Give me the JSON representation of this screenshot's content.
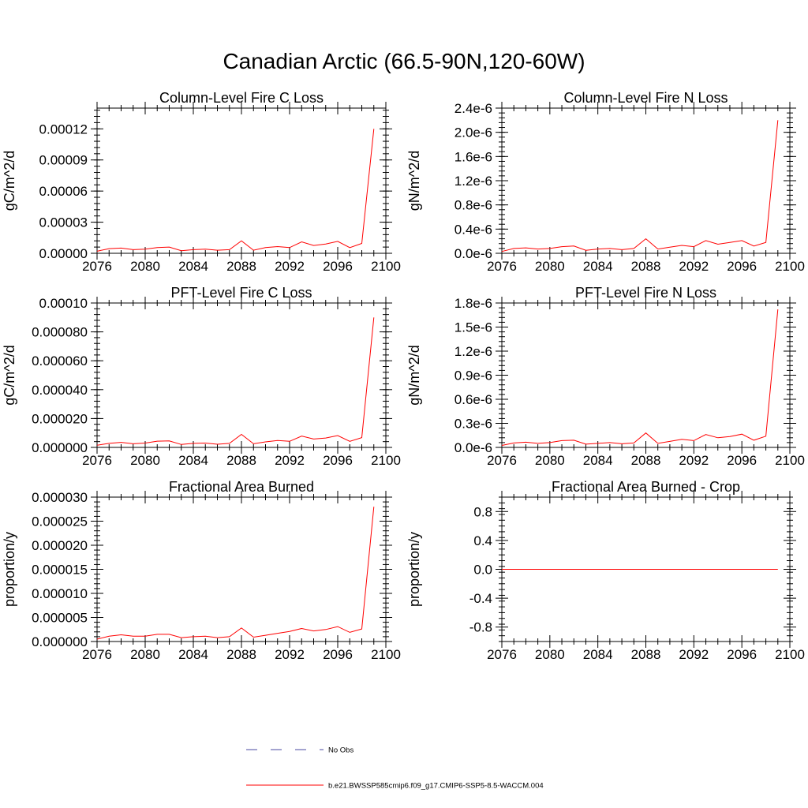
{
  "title": "Canadian Arctic (66.5-90N,120-60W)",
  "colors": {
    "model_line": "#ff0000",
    "obs_line": "#4a4aa0",
    "axis": "#000000"
  },
  "chart_data": [
    {
      "type": "line",
      "title": "Column-Level Fire C Loss",
      "ylabel": "gC/m^2/d",
      "xlim": [
        2076,
        2100
      ],
      "ylim": [
        0,
        0.00014
      ],
      "xticks": [
        "2076",
        "2080",
        "2084",
        "2088",
        "2092",
        "2096",
        "2100"
      ],
      "yticks": [
        {
          "v": 0,
          "label": "0.00000"
        },
        {
          "v": 3e-05,
          "label": "0.00003"
        },
        {
          "v": 6e-05,
          "label": "0.00006"
        },
        {
          "v": 9e-05,
          "label": "0.00009"
        },
        {
          "v": 0.00012,
          "label": "0.00012"
        }
      ],
      "x": [
        2076,
        2077,
        2078,
        2079,
        2080,
        2081,
        2082,
        2083,
        2084,
        2085,
        2086,
        2087,
        2088,
        2089,
        2090,
        2091,
        2092,
        2093,
        2094,
        2095,
        2096,
        2097,
        2098,
        2099
      ],
      "series": [
        {
          "values": [
            2e-06,
            4.5e-06,
            5e-06,
            3.5e-06,
            4e-06,
            5.5e-06,
            6e-06,
            2.5e-06,
            3.5e-06,
            4e-06,
            3e-06,
            3.5e-06,
            1.2e-05,
            3e-06,
            5.5e-06,
            6.5e-06,
            5.5e-06,
            1.1e-05,
            7.5e-06,
            9e-06,
            1.15e-05,
            5.5e-06,
            9.5e-06,
            0.00012
          ]
        }
      ]
    },
    {
      "type": "line",
      "title": "Column-Level Fire N Loss",
      "ylabel": "gN/m^2/d",
      "xlim": [
        2076,
        2100
      ],
      "ylim": [
        0,
        2.4e-06
      ],
      "xticks": [
        "2076",
        "2080",
        "2084",
        "2088",
        "2092",
        "2096",
        "2100"
      ],
      "yticks": [
        {
          "v": 0,
          "label": "0.0e-6"
        },
        {
          "v": 4e-07,
          "label": "0.4e-6"
        },
        {
          "v": 8e-07,
          "label": "0.8e-6"
        },
        {
          "v": 1.2e-06,
          "label": "1.2e-6"
        },
        {
          "v": 1.6e-06,
          "label": "1.6e-6"
        },
        {
          "v": 2e-06,
          "label": "2.0e-6"
        },
        {
          "v": 2.4e-06,
          "label": "2.4e-6"
        }
      ],
      "x": [
        2076,
        2077,
        2078,
        2079,
        2080,
        2081,
        2082,
        2083,
        2084,
        2085,
        2086,
        2087,
        2088,
        2089,
        2090,
        2091,
        2092,
        2093,
        2094,
        2095,
        2096,
        2097,
        2098,
        2099
      ],
      "series": [
        {
          "values": [
            3e-08,
            8e-08,
            9e-08,
            7e-08,
            8e-08,
            1.1e-07,
            1.2e-07,
            5e-08,
            7e-08,
            8e-08,
            6e-08,
            8e-08,
            2.4e-07,
            7e-08,
            1e-07,
            1.3e-07,
            1.1e-07,
            2.1e-07,
            1.5e-07,
            1.8e-07,
            2.1e-07,
            1.2e-07,
            1.8e-07,
            2.2e-06
          ]
        }
      ]
    },
    {
      "type": "line",
      "title": "PFT-Level Fire C Loss",
      "ylabel": "gC/m^2/d",
      "xlim": [
        2076,
        2100
      ],
      "ylim": [
        0,
        0.0001
      ],
      "xticks": [
        "2076",
        "2080",
        "2084",
        "2088",
        "2092",
        "2096",
        "2100"
      ],
      "yticks": [
        {
          "v": 0,
          "label": "0.000000"
        },
        {
          "v": 2e-05,
          "label": "0.000020"
        },
        {
          "v": 4e-05,
          "label": "0.000040"
        },
        {
          "v": 6e-05,
          "label": "0.000060"
        },
        {
          "v": 8e-05,
          "label": "0.000080"
        },
        {
          "v": 0.0001,
          "label": "0.00010"
        }
      ],
      "x": [
        2076,
        2077,
        2078,
        2079,
        2080,
        2081,
        2082,
        2083,
        2084,
        2085,
        2086,
        2087,
        2088,
        2089,
        2090,
        2091,
        2092,
        2093,
        2094,
        2095,
        2096,
        2097,
        2098,
        2099
      ],
      "series": [
        {
          "values": [
            1.5e-06,
            2.8e-06,
            3.5e-06,
            2.5e-06,
            3e-06,
            4.3e-06,
            4.5e-06,
            2e-06,
            2.8e-06,
            3e-06,
            2.2e-06,
            2.8e-06,
            9e-06,
            2.5e-06,
            3.8e-06,
            4.8e-06,
            4.2e-06,
            7.8e-06,
            5.8e-06,
            6.5e-06,
            8.2e-06,
            4.2e-06,
            6.8e-06,
            9e-05
          ]
        }
      ]
    },
    {
      "type": "line",
      "title": "PFT-Level Fire N Loss",
      "ylabel": "gN/m^2/d",
      "xlim": [
        2076,
        2100
      ],
      "ylim": [
        0,
        1.8e-06
      ],
      "xticks": [
        "2076",
        "2080",
        "2084",
        "2088",
        "2092",
        "2096",
        "2100"
      ],
      "yticks": [
        {
          "v": 0,
          "label": "0.0e-6"
        },
        {
          "v": 3e-07,
          "label": "0.3e-6"
        },
        {
          "v": 6e-07,
          "label": "0.6e-6"
        },
        {
          "v": 9e-07,
          "label": "0.9e-6"
        },
        {
          "v": 1.2e-06,
          "label": "1.2e-6"
        },
        {
          "v": 1.5e-06,
          "label": "1.5e-6"
        },
        {
          "v": 1.8e-06,
          "label": "1.8e-6"
        }
      ],
      "x": [
        2076,
        2077,
        2078,
        2079,
        2080,
        2081,
        2082,
        2083,
        2084,
        2085,
        2086,
        2087,
        2088,
        2089,
        2090,
        2091,
        2092,
        2093,
        2094,
        2095,
        2096,
        2097,
        2098,
        2099
      ],
      "series": [
        {
          "values": [
            2.5e-08,
            5.5e-08,
            6.5e-08,
            5e-08,
            6e-08,
            8.5e-08,
            9e-08,
            4e-08,
            5e-08,
            6e-08,
            4.5e-08,
            5.5e-08,
            1.8e-07,
            5e-08,
            7.5e-08,
            1e-07,
            8.5e-08,
            1.6e-07,
            1.2e-07,
            1.35e-07,
            1.65e-07,
            9e-08,
            1.4e-07,
            1.72e-06
          ]
        }
      ]
    },
    {
      "type": "line",
      "title": "Fractional Area Burned",
      "ylabel": "proportion/y",
      "xlim": [
        2076,
        2100
      ],
      "ylim": [
        0,
        3e-05
      ],
      "xticks": [
        "2076",
        "2080",
        "2084",
        "2088",
        "2092",
        "2096",
        "2100"
      ],
      "yticks": [
        {
          "v": 0,
          "label": "0.000000"
        },
        {
          "v": 5e-06,
          "label": "0.000005"
        },
        {
          "v": 1e-05,
          "label": "0.000010"
        },
        {
          "v": 1.5e-05,
          "label": "0.000015"
        },
        {
          "v": 2e-05,
          "label": "0.000020"
        },
        {
          "v": 2.5e-05,
          "label": "0.000025"
        },
        {
          "v": 3e-05,
          "label": "0.000030"
        }
      ],
      "x": [
        2076,
        2077,
        2078,
        2079,
        2080,
        2081,
        2082,
        2083,
        2084,
        2085,
        2086,
        2087,
        2088,
        2089,
        2090,
        2091,
        2092,
        2093,
        2094,
        2095,
        2096,
        2097,
        2098,
        2099
      ],
      "series": [
        {
          "values": [
            5e-07,
            1.1e-06,
            1.4e-06,
            1.1e-06,
            1.1e-06,
            1.5e-06,
            1.5e-06,
            8e-07,
            1e-06,
            1.1e-06,
            8e-07,
            1e-06,
            2.8e-06,
            9e-07,
            1.3e-06,
            1.7e-06,
            2.1e-06,
            2.7e-06,
            2.2e-06,
            2.5e-06,
            3.1e-06,
            1.9e-06,
            2.6e-06,
            2.8e-05
          ]
        }
      ]
    },
    {
      "type": "line",
      "title": "Fractional Area Burned - Crop",
      "ylabel": "proportion/y",
      "xlim": [
        2076,
        2100
      ],
      "ylim": [
        -1.0,
        1.0
      ],
      "xticks": [
        "2076",
        "2080",
        "2084",
        "2088",
        "2092",
        "2096",
        "2100"
      ],
      "yticks": [
        {
          "v": -0.8,
          "label": "-0.8"
        },
        {
          "v": -0.4,
          "label": "-0.4"
        },
        {
          "v": 0,
          "label": "0.0"
        },
        {
          "v": 0.4,
          "label": "0.4"
        },
        {
          "v": 0.8,
          "label": "0.8"
        }
      ],
      "x": [
        2076,
        2077,
        2078,
        2079,
        2080,
        2081,
        2082,
        2083,
        2084,
        2085,
        2086,
        2087,
        2088,
        2089,
        2090,
        2091,
        2092,
        2093,
        2094,
        2095,
        2096,
        2097,
        2098,
        2099
      ],
      "series": [
        {
          "values": [
            0,
            0,
            0,
            0,
            0,
            0,
            0,
            0,
            0,
            0,
            0,
            0,
            0,
            0,
            0,
            0,
            0,
            0,
            0,
            0,
            0,
            0,
            0,
            0
          ]
        }
      ]
    }
  ],
  "legend": [
    {
      "label": "No Obs",
      "style": "dashed"
    },
    {
      "label": "b.e21.BWSSP585cmip6.f09_g17.CMIP6-SSP5-8.5-WACCM.004",
      "style": "solid"
    }
  ]
}
